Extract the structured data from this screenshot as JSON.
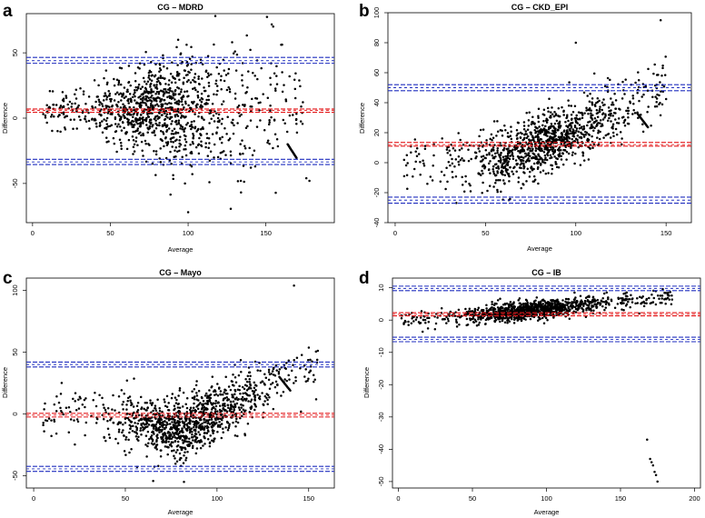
{
  "chart_data": [
    {
      "type": "scatter",
      "panel": "a",
      "title": "CG – MDRD",
      "xlabel": "Average",
      "ylabel": "Difference",
      "xlim": [
        -4,
        194
      ],
      "ylim": [
        -80,
        80
      ],
      "xticks": [
        0,
        50,
        100,
        150
      ],
      "yticks": [
        -50,
        0,
        50
      ],
      "mean_difference": 6,
      "mean_ci": [
        4.5,
        7
      ],
      "upper_limit": 44,
      "upper_ci": [
        42,
        46.5
      ],
      "lower_limit": -33.5,
      "lower_ci": [
        -35.5,
        -31.5
      ],
      "point_count": 1150,
      "scatter_description": "Differences centred near 0–10, spread widening with Average; most points between Average 30 and 130; a linear streak near Average 165–170 falling from -20 to -30"
    },
    {
      "type": "scatter",
      "panel": "b",
      "title": "CG – CKD_EPI",
      "xlabel": "Average",
      "ylabel": "Difference",
      "xlim": [
        -4,
        164
      ],
      "ylim": [
        -40,
        100
      ],
      "xticks": [
        0,
        50,
        100,
        150
      ],
      "yticks": [
        -40,
        -20,
        0,
        20,
        40,
        60,
        80,
        100
      ],
      "mean_difference": 12,
      "mean_ci": [
        11,
        13.5
      ],
      "upper_limit": 50,
      "upper_ci": [
        48,
        52
      ],
      "lower_limit": -25,
      "lower_ci": [
        -27,
        -23
      ],
      "point_count": 1150,
      "scatter_description": "Difference rises with Average: about 0 near Average 50–60 up to 40–60 near Average 140; short diagonal streak near Average 135–140"
    },
    {
      "type": "scatter",
      "panel": "c",
      "title": "CG – Mayo",
      "xlabel": "Average",
      "ylabel": "Difference",
      "xlim": [
        -4,
        164
      ],
      "ylim": [
        -60,
        110
      ],
      "xticks": [
        0,
        50,
        100,
        150
      ],
      "yticks": [
        -50,
        0,
        50,
        100
      ],
      "mean_difference": -1,
      "mean_ci": [
        -2.5,
        0.5
      ],
      "upper_limit": 40,
      "upper_ci": [
        38,
        42
      ],
      "lower_limit": -44.5,
      "lower_ci": [
        -46.5,
        -42.5
      ],
      "point_count": 1150,
      "scatter_description": "Differences mostly negative (around -15) near Average 70–90, rising steeply to 30–60 near Average 140; diagonal streak near Average 135–140"
    },
    {
      "type": "scatter",
      "panel": "d",
      "title": "CG – IB",
      "xlabel": "Average",
      "ylabel": "Difference",
      "xlim": [
        -4,
        204
      ],
      "ylim": [
        -52,
        13
      ],
      "xticks": [
        0,
        50,
        100,
        150,
        200
      ],
      "yticks": [
        -50,
        -40,
        -30,
        -20,
        -10,
        0,
        10
      ],
      "mean_difference": 1.8,
      "mean_ci": [
        1.3,
        2.3
      ],
      "upper_limit": 9.8,
      "upper_ci": [
        9.1,
        10.5
      ],
      "lower_limit": -6,
      "lower_ci": [
        -6.7,
        -5.3
      ],
      "point_count": 1150,
      "scatter_description": "Tight band near 0 at Average 20 rising to 5–8 at Average 150; a few outliers near Average 168–175 between -37 and -50"
    }
  ],
  "colors": {
    "points": "#000000",
    "mean_line": "#e41a1c",
    "limit_lines": "#1f2dbf",
    "frame": "#000000"
  }
}
